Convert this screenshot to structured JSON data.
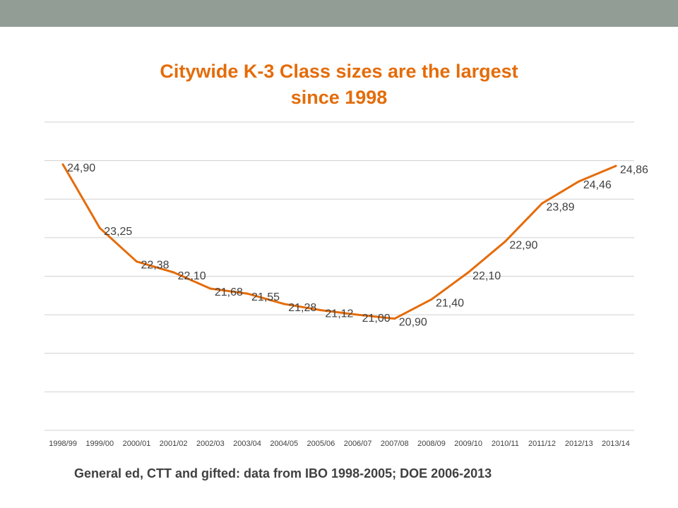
{
  "slide": {
    "footer_text": "General ed, CTT and gifted: data from IBO 1998-2005;  DOE 2006-2013"
  },
  "colors": {
    "header_bar": "#929e95",
    "title": "#e46c0a",
    "line": "#e46c0a",
    "gridline": "#d0d0d0",
    "text": "#404040"
  },
  "chart_data": {
    "type": "line",
    "title": "Citywide K-3 Class sizes are the largest since 1998",
    "title_lines": [
      "Citywide K-3 Class sizes are the largest",
      "since 1998"
    ],
    "xlabel": "",
    "ylabel": "",
    "categories": [
      "1998/99",
      "1999/00",
      "2000/01",
      "2001/02",
      "2002/03",
      "2003/04",
      "2004/05",
      "2005/06",
      "2006/07",
      "2007/08",
      "2008/09",
      "2009/10",
      "2010/11",
      "2011/12",
      "2012/13",
      "2013/14"
    ],
    "series": [
      {
        "values": [
          24.9,
          23.25,
          22.38,
          22.1,
          21.68,
          21.55,
          21.28,
          21.12,
          21.0,
          20.9,
          21.4,
          22.1,
          22.9,
          23.89,
          24.46,
          24.86
        ],
        "labels": [
          "24,90",
          "23,25",
          "22,38",
          "22,10",
          "21,68",
          "21,55",
          "21,28",
          "21,12",
          "21,00",
          "20,90",
          "21,40",
          "22,10",
          "22,90",
          "23,89",
          "24,46",
          "24,86"
        ]
      }
    ],
    "ylim": [
      18,
      26
    ],
    "y_gridlines": [
      19,
      20,
      21,
      22,
      23,
      24,
      25,
      26
    ],
    "y_axis_labels_visible": false,
    "grid": true,
    "legend": "none"
  }
}
